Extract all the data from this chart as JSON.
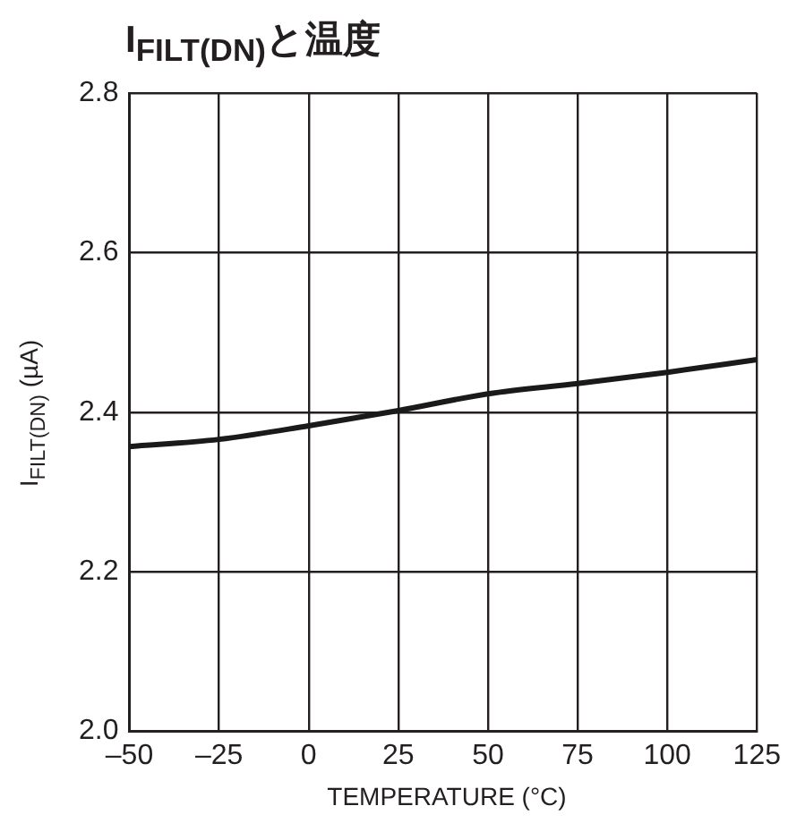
{
  "chart_data": {
    "type": "line",
    "title": "I$_{FILT(DN)}$と温度",
    "xlabel": "TEMPERATURE (°C)",
    "ylabel": "I$_{FILT(DN)}$ (µA)",
    "x": [
      -50,
      -25,
      0,
      25,
      50,
      75,
      100,
      125
    ],
    "series": [
      {
        "color": "#1a1a1a",
        "values": [
          2.357,
          2.366,
          2.383,
          2.402,
          2.423,
          2.436,
          2.45,
          2.466
        ]
      }
    ],
    "xlim": [
      -50,
      125
    ],
    "xticks": [
      {
        "value": -50,
        "label": "–50"
      },
      {
        "value": -25,
        "label": "–25"
      },
      0,
      25,
      50,
      75,
      100,
      125
    ],
    "ylim": [
      2.0,
      2.8
    ],
    "yticks": [
      {
        "value": 2,
        "label": "2.0"
      },
      2.2,
      2.4,
      2.6,
      2.8
    ],
    "grid": true,
    "legend": false,
    "marker": "none",
    "line_style": "solid"
  }
}
